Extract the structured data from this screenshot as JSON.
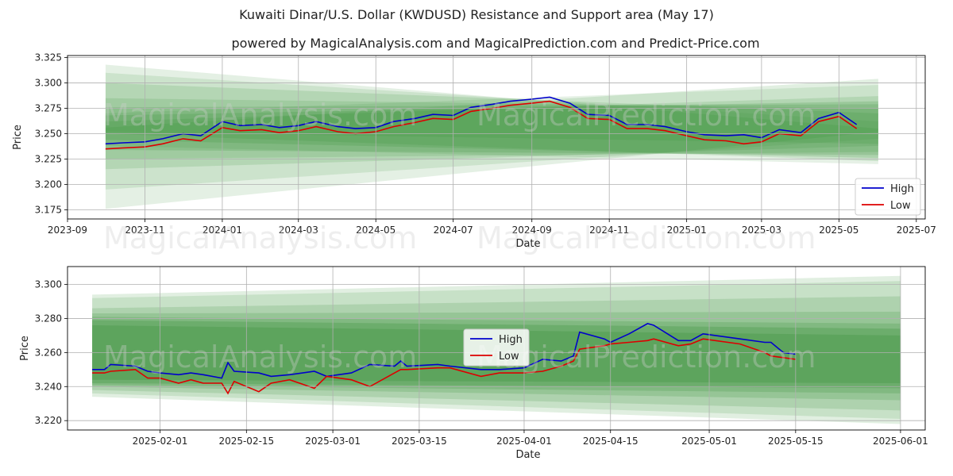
{
  "title": "Kuwaiti Dinar/U.S. Dollar (KWDUSD) Resistance and Support area (May 17)",
  "subtitle": "powered by MagicalAnalysis.com and MagicalPrediction.com and Predict-Price.com",
  "watermarks": [
    "MagicalAnalysis.com",
    "MagicalPrediction.com"
  ],
  "colors": {
    "high": "#0000cc",
    "low": "#dd0000",
    "band": "#2e8b2e"
  },
  "chart_data": [
    {
      "type": "line",
      "xlabel": "Date",
      "ylabel": "Price",
      "xlim": [
        "2023-09-01",
        "2025-07-08"
      ],
      "ylim": [
        3.166,
        3.327
      ],
      "x_ticks": [
        "2023-09",
        "2023-11",
        "2024-01",
        "2024-03",
        "2024-05",
        "2024-07",
        "2024-09",
        "2024-11",
        "2025-01",
        "2025-03",
        "2025-05",
        "2025-07"
      ],
      "y_ticks": [
        3.175,
        3.2,
        3.225,
        3.25,
        3.275,
        3.3,
        3.325
      ],
      "legend": {
        "position": "lower-right",
        "entries": [
          "High",
          "Low"
        ]
      },
      "grid": true,
      "bands": [
        {
          "x": [
            "2023-10-01",
            "2025-06-01"
          ],
          "upper": [
            3.318,
            3.255
          ],
          "lower": [
            3.176,
            3.252
          ],
          "opacity": 0.13
        },
        {
          "x": [
            "2023-10-01",
            "2025-06-01"
          ],
          "upper": [
            3.31,
            3.262
          ],
          "lower": [
            3.195,
            3.245
          ],
          "opacity": 0.13
        },
        {
          "x": [
            "2023-10-01",
            "2025-06-01"
          ],
          "upper": [
            3.3,
            3.27
          ],
          "lower": [
            3.215,
            3.238
          ],
          "opacity": 0.15
        },
        {
          "x": [
            "2023-10-01",
            "2025-06-01"
          ],
          "upper": [
            3.285,
            3.275
          ],
          "lower": [
            3.225,
            3.232
          ],
          "opacity": 0.15
        },
        {
          "x": [
            "2023-10-01",
            "2025-06-01"
          ],
          "upper": [
            3.276,
            3.279
          ],
          "lower": [
            3.234,
            3.229
          ],
          "opacity": 0.18
        },
        {
          "x": [
            "2023-10-01",
            "2025-06-01"
          ],
          "upper": [
            3.268,
            3.282
          ],
          "lower": [
            3.244,
            3.226
          ],
          "opacity": 0.18
        },
        {
          "x": [
            "2023-10-01",
            "2025-06-01"
          ],
          "upper": [
            3.262,
            3.287
          ],
          "lower": [
            3.25,
            3.223
          ],
          "opacity": 0.15
        },
        {
          "x": [
            "2023-10-01",
            "2025-06-01"
          ],
          "upper": [
            3.27,
            3.298
          ],
          "lower": [
            3.238,
            3.22
          ],
          "opacity": 0.12
        },
        {
          "x": [
            "2023-10-01",
            "2025-06-01"
          ],
          "upper": [
            3.256,
            3.304
          ],
          "lower": [
            3.252,
            3.24
          ],
          "opacity": 0.14
        }
      ],
      "series": [
        {
          "name": "High",
          "x": [
            "2023-10-01",
            "2023-10-15",
            "2023-11-01",
            "2023-11-15",
            "2023-12-01",
            "2023-12-15",
            "2024-01-01",
            "2024-01-15",
            "2024-02-01",
            "2024-02-15",
            "2024-03-01",
            "2024-03-15",
            "2024-04-01",
            "2024-04-15",
            "2024-05-01",
            "2024-05-15",
            "2024-06-01",
            "2024-06-15",
            "2024-07-01",
            "2024-07-15",
            "2024-08-01",
            "2024-08-15",
            "2024-09-01",
            "2024-09-15",
            "2024-10-01",
            "2024-10-15",
            "2024-11-01",
            "2024-11-15",
            "2024-12-01",
            "2024-12-15",
            "2025-01-01",
            "2025-01-15",
            "2025-02-01",
            "2025-02-15",
            "2025-03-01",
            "2025-03-15",
            "2025-04-01",
            "2025-04-15",
            "2025-05-01",
            "2025-05-15"
          ],
          "values": [
            3.24,
            3.241,
            3.242,
            3.245,
            3.25,
            3.248,
            3.262,
            3.258,
            3.259,
            3.256,
            3.258,
            3.262,
            3.257,
            3.255,
            3.256,
            3.262,
            3.265,
            3.269,
            3.268,
            3.276,
            3.279,
            3.282,
            3.284,
            3.286,
            3.28,
            3.269,
            3.268,
            3.259,
            3.259,
            3.257,
            3.252,
            3.249,
            3.248,
            3.249,
            3.246,
            3.254,
            3.251,
            3.265,
            3.271,
            3.259
          ]
        },
        {
          "name": "Low",
          "x": [
            "2023-10-01",
            "2023-10-15",
            "2023-11-01",
            "2023-11-15",
            "2023-12-01",
            "2023-12-15",
            "2024-01-01",
            "2024-01-15",
            "2024-02-01",
            "2024-02-15",
            "2024-03-01",
            "2024-03-15",
            "2024-04-01",
            "2024-04-15",
            "2024-05-01",
            "2024-05-15",
            "2024-06-01",
            "2024-06-15",
            "2024-07-01",
            "2024-07-15",
            "2024-08-01",
            "2024-08-15",
            "2024-09-01",
            "2024-09-15",
            "2024-10-01",
            "2024-10-15",
            "2024-11-01",
            "2024-11-15",
            "2024-12-01",
            "2024-12-15",
            "2025-01-01",
            "2025-01-15",
            "2025-02-01",
            "2025-02-15",
            "2025-03-01",
            "2025-03-15",
            "2025-04-01",
            "2025-04-15",
            "2025-05-01",
            "2025-05-15"
          ],
          "values": [
            3.235,
            3.236,
            3.237,
            3.24,
            3.245,
            3.243,
            3.256,
            3.253,
            3.254,
            3.251,
            3.253,
            3.257,
            3.252,
            3.25,
            3.252,
            3.257,
            3.261,
            3.265,
            3.264,
            3.272,
            3.275,
            3.278,
            3.28,
            3.282,
            3.276,
            3.265,
            3.264,
            3.255,
            3.255,
            3.253,
            3.248,
            3.244,
            3.243,
            3.24,
            3.242,
            3.25,
            3.248,
            3.262,
            3.267,
            3.255
          ]
        }
      ]
    },
    {
      "type": "line",
      "xlabel": "Date",
      "ylabel": "Price",
      "xlim": [
        "2025-01-17",
        "2025-06-05"
      ],
      "ylim": [
        3.2145,
        3.3105
      ],
      "x_ticks": [
        "2025-02-01",
        "2025-02-15",
        "2025-03-01",
        "2025-03-15",
        "2025-04-01",
        "2025-04-15",
        "2025-05-01",
        "2025-05-15",
        "2025-06-01"
      ],
      "y_ticks": [
        3.22,
        3.24,
        3.26,
        3.28,
        3.3
      ],
      "legend": {
        "position": "center",
        "entries": [
          "High",
          "Low"
        ]
      },
      "grid": true,
      "bands": [
        {
          "x": [
            "2025-01-21",
            "2025-06-01"
          ],
          "upper": [
            3.294,
            3.305
          ],
          "lower": [
            3.234,
            3.218
          ],
          "opacity": 0.14
        },
        {
          "x": [
            "2025-01-21",
            "2025-06-01"
          ],
          "upper": [
            3.292,
            3.302
          ],
          "lower": [
            3.236,
            3.221
          ],
          "opacity": 0.14
        },
        {
          "x": [
            "2025-01-21",
            "2025-06-01"
          ],
          "upper": [
            3.286,
            3.293
          ],
          "lower": [
            3.238,
            3.226
          ],
          "opacity": 0.16
        },
        {
          "x": [
            "2025-01-21",
            "2025-06-01"
          ],
          "upper": [
            3.283,
            3.284
          ],
          "lower": [
            3.24,
            3.232
          ],
          "opacity": 0.18
        },
        {
          "x": [
            "2025-01-21",
            "2025-06-01"
          ],
          "upper": [
            3.281,
            3.277
          ],
          "lower": [
            3.241,
            3.236
          ],
          "opacity": 0.2
        },
        {
          "x": [
            "2025-01-21",
            "2025-06-01"
          ],
          "upper": [
            3.279,
            3.274
          ],
          "lower": [
            3.242,
            3.239
          ],
          "opacity": 0.25
        },
        {
          "x": [
            "2025-01-21",
            "2025-06-01"
          ],
          "upper": [
            3.276,
            3.27
          ],
          "lower": [
            3.244,
            3.242
          ],
          "opacity": 0.25
        }
      ],
      "series": [
        {
          "name": "High",
          "x": [
            "2025-01-21",
            "2025-01-23",
            "2025-01-24",
            "2025-01-28",
            "2025-01-30",
            "2025-02-01",
            "2025-02-04",
            "2025-02-06",
            "2025-02-08",
            "2025-02-11",
            "2025-02-12",
            "2025-02-13",
            "2025-02-17",
            "2025-02-19",
            "2025-02-22",
            "2025-02-26",
            "2025-02-28",
            "2025-03-04",
            "2025-03-07",
            "2025-03-11",
            "2025-03-12",
            "2025-03-13",
            "2025-03-18",
            "2025-03-20",
            "2025-03-25",
            "2025-03-28",
            "2025-04-01",
            "2025-04-04",
            "2025-04-07",
            "2025-04-09",
            "2025-04-10",
            "2025-04-14",
            "2025-04-15",
            "2025-04-18",
            "2025-04-21",
            "2025-04-22",
            "2025-04-26",
            "2025-04-28",
            "2025-04-30",
            "2025-05-06",
            "2025-05-10",
            "2025-05-11",
            "2025-05-13",
            "2025-05-15"
          ],
          "values": [
            3.25,
            3.25,
            3.253,
            3.252,
            3.249,
            3.248,
            3.247,
            3.248,
            3.247,
            3.245,
            3.254,
            3.249,
            3.248,
            3.246,
            3.247,
            3.249,
            3.246,
            3.248,
            3.253,
            3.252,
            3.255,
            3.252,
            3.253,
            3.252,
            3.25,
            3.25,
            3.251,
            3.256,
            3.255,
            3.258,
            3.272,
            3.268,
            3.266,
            3.271,
            3.277,
            3.276,
            3.267,
            3.267,
            3.271,
            3.268,
            3.266,
            3.266,
            3.26,
            3.259
          ]
        },
        {
          "name": "Low",
          "x": [
            "2025-01-21",
            "2025-01-23",
            "2025-01-24",
            "2025-01-28",
            "2025-01-30",
            "2025-02-01",
            "2025-02-04",
            "2025-02-06",
            "2025-02-08",
            "2025-02-11",
            "2025-02-12",
            "2025-02-13",
            "2025-02-17",
            "2025-02-19",
            "2025-02-22",
            "2025-02-26",
            "2025-02-28",
            "2025-03-04",
            "2025-03-07",
            "2025-03-11",
            "2025-03-12",
            "2025-03-13",
            "2025-03-18",
            "2025-03-20",
            "2025-03-25",
            "2025-03-28",
            "2025-04-01",
            "2025-04-04",
            "2025-04-07",
            "2025-04-09",
            "2025-04-10",
            "2025-04-14",
            "2025-04-15",
            "2025-04-18",
            "2025-04-21",
            "2025-04-22",
            "2025-04-26",
            "2025-04-28",
            "2025-04-30",
            "2025-05-06",
            "2025-05-10",
            "2025-05-11",
            "2025-05-13",
            "2025-05-15"
          ],
          "values": [
            3.248,
            3.248,
            3.249,
            3.25,
            3.245,
            3.245,
            3.242,
            3.244,
            3.242,
            3.242,
            3.236,
            3.243,
            3.237,
            3.242,
            3.244,
            3.239,
            3.246,
            3.244,
            3.24,
            3.248,
            3.25,
            3.25,
            3.251,
            3.251,
            3.246,
            3.248,
            3.248,
            3.249,
            3.252,
            3.255,
            3.262,
            3.264,
            3.265,
            3.266,
            3.267,
            3.268,
            3.264,
            3.265,
            3.268,
            3.265,
            3.26,
            3.258,
            3.257,
            3.256
          ]
        }
      ]
    }
  ]
}
